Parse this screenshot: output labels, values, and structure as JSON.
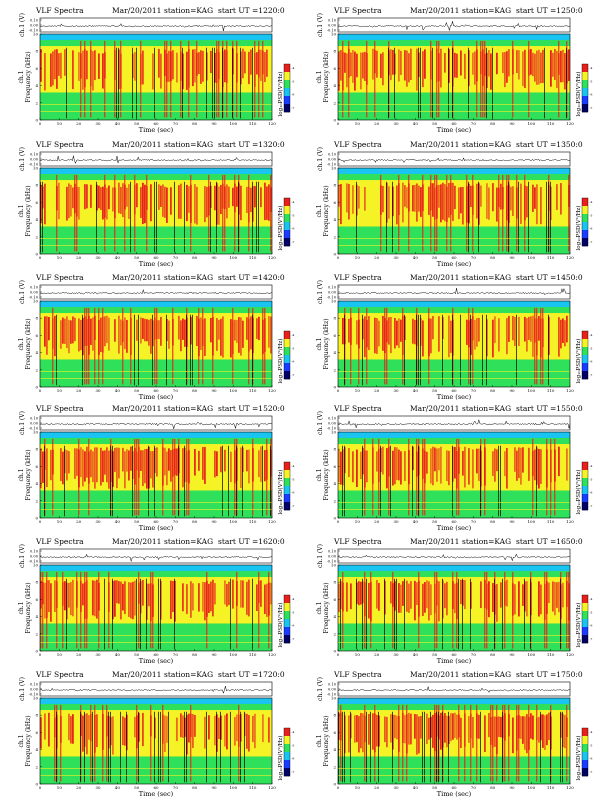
{
  "header_common": {
    "product": "VLF Spectra",
    "date": "Mar/20/2011",
    "station": "station=KAG",
    "start_ut_label": "start UT ="
  },
  "axis_labels": {
    "ch1_trace": "ch.1 (V)",
    "ch1": "ch.1",
    "frequency": "Frequency  (kHz)",
    "time": "Time (sec)",
    "colorbar": "log₁₀PSD(V²/Hz)"
  },
  "colors": {
    "low": "#1a3cff",
    "mid_low": "#19c4f0",
    "mid": "#2fe05a",
    "mid_high": "#f5f225",
    "high": "#e8201c",
    "darkest": "#000066"
  },
  "chart_data": [
    {
      "type": "heatmap",
      "start_ut": "1220:0",
      "x_label": "Time (sec)",
      "y_label": "Frequency (kHz)",
      "xlim": [
        0,
        120
      ],
      "ylim": [
        0,
        10
      ],
      "trace_ylim": [
        -0.1,
        0.1
      ],
      "x_ticks": [
        0,
        10,
        20,
        30,
        40,
        50,
        60,
        70,
        80,
        90,
        100,
        110,
        120
      ],
      "y_ticks": [
        0,
        2,
        4,
        6,
        8,
        10
      ],
      "trace_ticks": [
        "0.10",
        "0.00",
        "-0.10"
      ],
      "colorbar_ticks": [
        "-4",
        "-5",
        "-6",
        "-7"
      ]
    },
    {
      "type": "heatmap",
      "start_ut": "1250:0",
      "x_label": "Time (sec)",
      "y_label": "Frequency (kHz)",
      "xlim": [
        0,
        120
      ],
      "ylim": [
        0,
        10
      ],
      "trace_ylim": [
        -0.1,
        0.1
      ],
      "x_ticks": [
        0,
        10,
        20,
        30,
        40,
        50,
        60,
        70,
        80,
        90,
        100,
        110,
        120
      ],
      "y_ticks": [
        0,
        2,
        4,
        6,
        8,
        10
      ],
      "trace_ticks": [
        "0.10",
        "0.00",
        "-0.10"
      ],
      "colorbar_ticks": [
        "-4",
        "-5",
        "-6",
        "-7"
      ]
    },
    {
      "type": "heatmap",
      "start_ut": "1320:0",
      "x_label": "Time (sec)",
      "y_label": "Frequency (kHz)",
      "xlim": [
        0,
        120
      ],
      "ylim": [
        0,
        10
      ],
      "trace_ylim": [
        -0.1,
        0.1
      ],
      "x_ticks": [
        0,
        10,
        20,
        30,
        40,
        50,
        60,
        70,
        80,
        90,
        100,
        110,
        120
      ],
      "y_ticks": [
        0,
        2,
        4,
        6,
        8,
        10
      ],
      "trace_ticks": [
        "0.10",
        "0.00",
        "-0.10"
      ],
      "colorbar_ticks": [
        "-4",
        "-5",
        "-6",
        "-7"
      ]
    },
    {
      "type": "heatmap",
      "start_ut": "1350:0",
      "x_label": "Time (sec)",
      "y_label": "Frequency (kHz)",
      "xlim": [
        0,
        120
      ],
      "ylim": [
        0,
        10
      ],
      "trace_ylim": [
        -0.1,
        0.1
      ],
      "x_ticks": [
        0,
        10,
        20,
        30,
        40,
        50,
        60,
        70,
        80,
        90,
        100,
        110,
        120
      ],
      "y_ticks": [
        0,
        2,
        4,
        6,
        8,
        10
      ],
      "trace_ticks": [
        "0.10",
        "0.00",
        "-0.10"
      ],
      "colorbar_ticks": [
        "-4",
        "-5",
        "-6",
        "-7"
      ]
    },
    {
      "type": "heatmap",
      "start_ut": "1420:0",
      "x_label": "Time (sec)",
      "y_label": "Frequency (kHz)",
      "xlim": [
        0,
        120
      ],
      "ylim": [
        0,
        10
      ],
      "trace_ylim": [
        -0.1,
        0.1
      ],
      "x_ticks": [
        0,
        10,
        20,
        30,
        40,
        50,
        60,
        70,
        80,
        90,
        100,
        110,
        120
      ],
      "y_ticks": [
        0,
        2,
        4,
        6,
        8,
        10
      ],
      "trace_ticks": [
        "0.10",
        "0.00",
        "-0.10"
      ],
      "colorbar_ticks": [
        "-4",
        "-5",
        "-6",
        "-7"
      ]
    },
    {
      "type": "heatmap",
      "start_ut": "1450:0",
      "x_label": "Time (sec)",
      "y_label": "Frequency (kHz)",
      "xlim": [
        0,
        120
      ],
      "ylim": [
        0,
        10
      ],
      "trace_ylim": [
        -0.1,
        0.1
      ],
      "x_ticks": [
        0,
        10,
        20,
        30,
        40,
        50,
        60,
        70,
        80,
        90,
        100,
        110,
        120
      ],
      "y_ticks": [
        0,
        2,
        4,
        6,
        8,
        10
      ],
      "trace_ticks": [
        "0.10",
        "0.00",
        "-0.10"
      ],
      "colorbar_ticks": [
        "-4",
        "-5",
        "-6",
        "-7"
      ]
    },
    {
      "type": "heatmap",
      "start_ut": "1520:0",
      "x_label": "Time (sec)",
      "y_label": "Frequency (kHz)",
      "xlim": [
        0,
        120
      ],
      "ylim": [
        0,
        10
      ],
      "trace_ylim": [
        -0.1,
        0.1
      ],
      "x_ticks": [
        0,
        10,
        20,
        30,
        40,
        50,
        60,
        70,
        80,
        90,
        100,
        110,
        120
      ],
      "y_ticks": [
        0,
        2,
        4,
        6,
        8,
        10
      ],
      "trace_ticks": [
        "0.10",
        "0.00",
        "-0.10"
      ],
      "colorbar_ticks": [
        "-4",
        "-5",
        "-6",
        "-7"
      ]
    },
    {
      "type": "heatmap",
      "start_ut": "1550:0",
      "x_label": "Time (sec)",
      "y_label": "Frequency (kHz)",
      "xlim": [
        0,
        120
      ],
      "ylim": [
        0,
        10
      ],
      "trace_ylim": [
        -0.1,
        0.1
      ],
      "x_ticks": [
        0,
        10,
        20,
        30,
        40,
        50,
        60,
        70,
        80,
        90,
        100,
        110,
        120
      ],
      "y_ticks": [
        0,
        2,
        4,
        6,
        8,
        10
      ],
      "trace_ticks": [
        "0.10",
        "0.00",
        "-0.10"
      ],
      "colorbar_ticks": [
        "-4",
        "-5",
        "-6",
        "-7"
      ]
    },
    {
      "type": "heatmap",
      "start_ut": "1620:0",
      "x_label": "Time (sec)",
      "y_label": "Frequency (kHz)",
      "xlim": [
        0,
        120
      ],
      "ylim": [
        0,
        10
      ],
      "trace_ylim": [
        -0.1,
        0.1
      ],
      "x_ticks": [
        0,
        10,
        20,
        30,
        40,
        50,
        60,
        70,
        80,
        90,
        100,
        110,
        120
      ],
      "y_ticks": [
        0,
        2,
        4,
        6,
        8,
        10
      ],
      "trace_ticks": [
        "0.10",
        "0.00",
        "-0.10"
      ],
      "colorbar_ticks": [
        "-4",
        "-5",
        "-6",
        "-7"
      ]
    },
    {
      "type": "heatmap",
      "start_ut": "1650:0",
      "x_label": "Time (sec)",
      "y_label": "Frequency (kHz)",
      "xlim": [
        0,
        120
      ],
      "ylim": [
        0,
        10
      ],
      "trace_ylim": [
        -0.1,
        0.1
      ],
      "x_ticks": [
        0,
        10,
        20,
        30,
        40,
        50,
        60,
        70,
        80,
        90,
        100,
        110,
        120
      ],
      "y_ticks": [
        0,
        2,
        4,
        6,
        8,
        10
      ],
      "trace_ticks": [
        "0.10",
        "0.00",
        "-0.10"
      ],
      "colorbar_ticks": [
        "-4",
        "-5",
        "-6",
        "-7"
      ]
    },
    {
      "type": "heatmap",
      "start_ut": "1720:0",
      "x_label": "Time (sec)",
      "y_label": "Frequency (kHz)",
      "xlim": [
        0,
        120
      ],
      "ylim": [
        0,
        10
      ],
      "trace_ylim": [
        -0.1,
        0.1
      ],
      "x_ticks": [
        0,
        10,
        20,
        30,
        40,
        50,
        60,
        70,
        80,
        90,
        100,
        110,
        120
      ],
      "y_ticks": [
        0,
        2,
        4,
        6,
        8,
        10
      ],
      "trace_ticks": [
        "0.10",
        "0.00",
        "-0.10"
      ],
      "colorbar_ticks": [
        "-4",
        "-5",
        "-6",
        "-7"
      ]
    },
    {
      "type": "heatmap",
      "start_ut": "1750:0",
      "x_label": "Time (sec)",
      "y_label": "Frequency (kHz)",
      "xlim": [
        0,
        120
      ],
      "ylim": [
        0,
        10
      ],
      "trace_ylim": [
        -0.1,
        0.1
      ],
      "x_ticks": [
        0,
        10,
        20,
        30,
        40,
        50,
        60,
        70,
        80,
        90,
        100,
        110,
        120
      ],
      "y_ticks": [
        0,
        2,
        4,
        6,
        8,
        10
      ],
      "trace_ticks": [
        "0.10",
        "0.00",
        "-0.10"
      ],
      "colorbar_ticks": [
        "-4",
        "-5",
        "-6",
        "-7"
      ]
    }
  ]
}
